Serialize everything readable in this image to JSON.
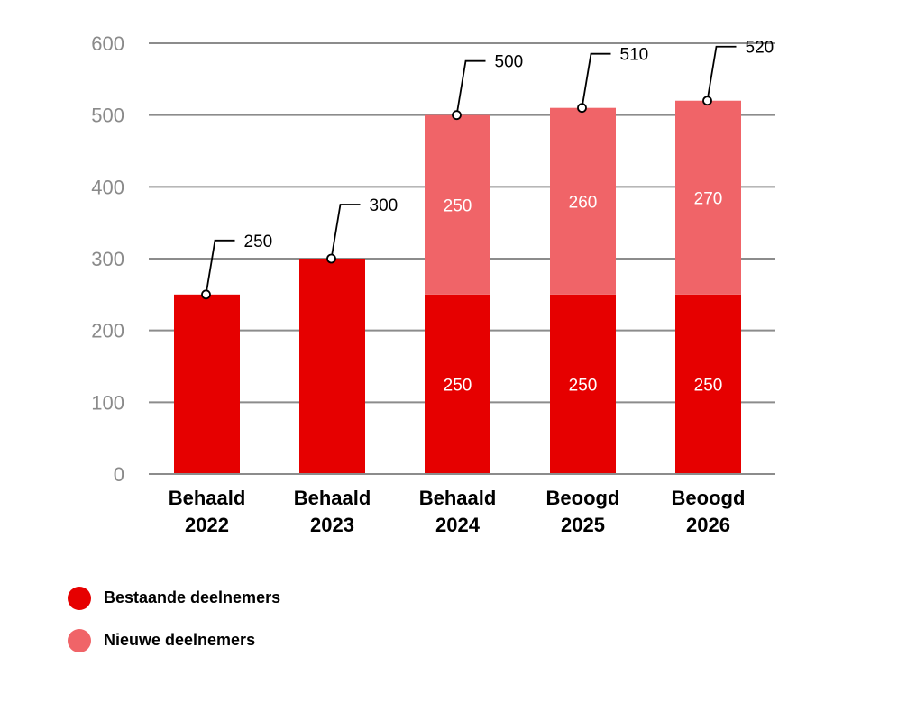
{
  "chart_data": {
    "type": "bar",
    "stacked": true,
    "title": "",
    "xlabel": "",
    "ylabel": "",
    "ylim": [
      0,
      600
    ],
    "yticks": [
      0,
      100,
      200,
      300,
      400,
      500,
      600
    ],
    "grid": true,
    "categories": [
      [
        "Behaald",
        "2022"
      ],
      [
        "Behaald",
        "2023"
      ],
      [
        "Behaald",
        "2024"
      ],
      [
        "Beoogd",
        "2025"
      ],
      [
        "Beoogd",
        "2026"
      ]
    ],
    "series": [
      {
        "name": "Bestaande deelnemers",
        "color": "#e60000",
        "values": [
          250,
          300,
          250,
          250,
          250
        ],
        "labels": [
          null,
          null,
          "250",
          "250",
          "250"
        ]
      },
      {
        "name": "Nieuwe deelnemers",
        "color": "#f06468",
        "values": [
          0,
          0,
          250,
          260,
          270
        ],
        "labels": [
          null,
          null,
          "250",
          "260",
          "270"
        ]
      }
    ],
    "totals": [
      250,
      300,
      500,
      510,
      520
    ],
    "legend_position": "bottom-left"
  }
}
